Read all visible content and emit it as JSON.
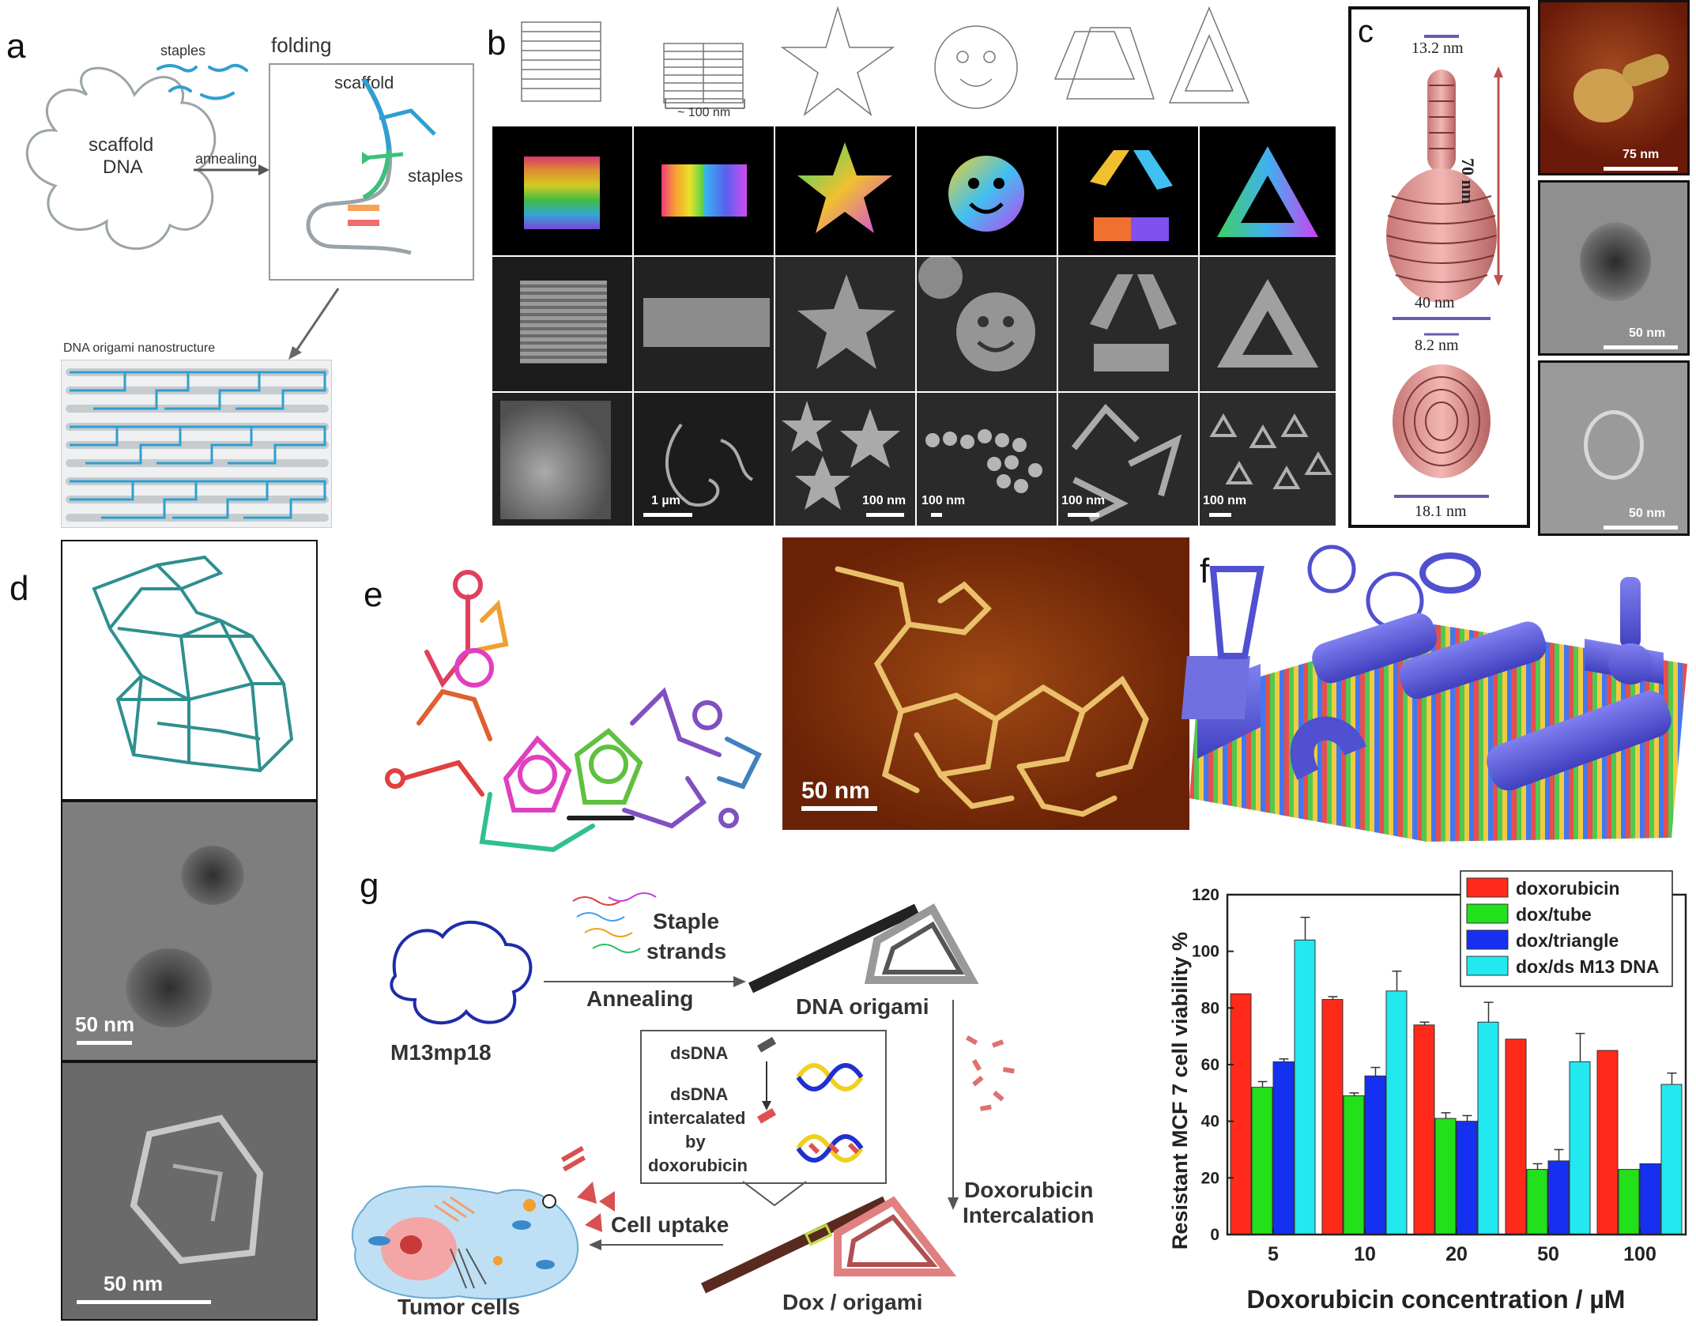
{
  "panels": {
    "a": {
      "label": "a",
      "staples": "staples",
      "folding": "folding",
      "scaffold_dna_line1": "scaffold",
      "scaffold_dna_line2": "DNA",
      "annealing": "annealing",
      "scaffold": "scaffold",
      "staples_inset": "staples",
      "nanostructure": "DNA origami nanostructure",
      "colors": {
        "staple": "#2f9fd0",
        "scaffold": "#9aa4a8"
      }
    },
    "b": {
      "label": "b",
      "dimension": "~ 100 nm",
      "scales": [
        "1 µm",
        "100 nm",
        "100 nm",
        "100 nm",
        "100 nm"
      ]
    },
    "c": {
      "label": "c",
      "dims": {
        "top": "13.2 nm",
        "height": "70 nm",
        "width": "40 nm",
        "inner": "8.2 nm",
        "bottom": "18.1 nm"
      },
      "scales": [
        "75 nm",
        "50 nm",
        "50 nm"
      ]
    },
    "d": {
      "label": "d",
      "scales": [
        "50 nm",
        "50 nm"
      ]
    },
    "e": {
      "label": "e",
      "scale": "50 nm"
    },
    "f": {
      "label": "f"
    },
    "g": {
      "label": "g",
      "m13": "M13mp18",
      "staple_line1": "Staple",
      "staple_line2": "strands",
      "annealing": "Annealing",
      "origami": "DNA origami",
      "dsdna": "dsDNA",
      "intercalated_line1": "dsDNA",
      "intercalated_line2": "intercalated",
      "intercalated_line3": "by",
      "intercalated_line4": "doxorubicin",
      "dox_line1": "Doxorubicin",
      "dox_line2": "Intercalation",
      "uptake": "Cell uptake",
      "dox_origami": "Dox / origami",
      "tumor": "Tumor cells"
    }
  },
  "chart_data": {
    "type": "bar",
    "categories": [
      "5",
      "10",
      "20",
      "50",
      "100"
    ],
    "series": [
      {
        "name": "doxorubicin",
        "color": "#ff2a1a",
        "values": [
          85,
          83,
          74,
          69,
          65
        ],
        "errors": [
          0,
          1,
          1,
          0,
          0
        ]
      },
      {
        "name": "dox/tube",
        "color": "#22e01a",
        "values": [
          52,
          49,
          41,
          23,
          23
        ],
        "errors": [
          2,
          1,
          2,
          2,
          0
        ]
      },
      {
        "name": "dox/triangle",
        "color": "#1530f0",
        "values": [
          61,
          56,
          40,
          26,
          25
        ],
        "errors": [
          1,
          3,
          2,
          4,
          0
        ]
      },
      {
        "name": "dox/ds M13 DNA",
        "color": "#22e8f0",
        "values": [
          104,
          86,
          75,
          61,
          53
        ],
        "errors": [
          8,
          7,
          7,
          10,
          4
        ]
      }
    ],
    "xlabel": "Doxorubicin concentration  / µM",
    "ylabel": "Resistant MCF 7 cell viability  %",
    "ylim": [
      0,
      120
    ],
    "yticks": [
      "0",
      "20",
      "40",
      "60",
      "80",
      "100",
      "120"
    ],
    "legend": "top-right"
  }
}
